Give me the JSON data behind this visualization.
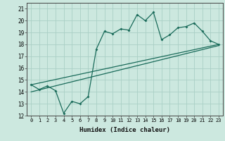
{
  "title": "",
  "xlabel": "Humidex (Indice chaleur)",
  "bg_color": "#cce8df",
  "grid_color": "#aacfc5",
  "line_color": "#1a6b5a",
  "xlim": [
    -0.5,
    23.5
  ],
  "ylim": [
    12,
    21.5
  ],
  "yticks": [
    12,
    13,
    14,
    15,
    16,
    17,
    18,
    19,
    20,
    21
  ],
  "xticks": [
    0,
    1,
    2,
    3,
    4,
    5,
    6,
    7,
    8,
    9,
    10,
    11,
    12,
    13,
    14,
    15,
    16,
    17,
    18,
    19,
    20,
    21,
    22,
    23
  ],
  "series1_x": [
    0,
    1,
    2,
    3,
    4,
    5,
    6,
    7,
    8,
    9,
    10,
    11,
    12,
    13,
    14,
    15,
    16,
    17,
    18,
    19,
    20,
    21,
    22,
    23
  ],
  "series1_y": [
    14.6,
    14.2,
    14.5,
    14.1,
    12.2,
    13.2,
    13.0,
    13.6,
    17.6,
    19.1,
    18.9,
    19.3,
    19.2,
    20.5,
    20.0,
    20.7,
    18.4,
    18.8,
    19.4,
    19.5,
    19.8,
    19.1,
    18.3,
    18.0
  ],
  "series2_x": [
    0,
    23
  ],
  "series2_y": [
    14.0,
    17.9
  ],
  "series3_x": [
    0,
    23
  ],
  "series3_y": [
    14.6,
    18.0
  ]
}
